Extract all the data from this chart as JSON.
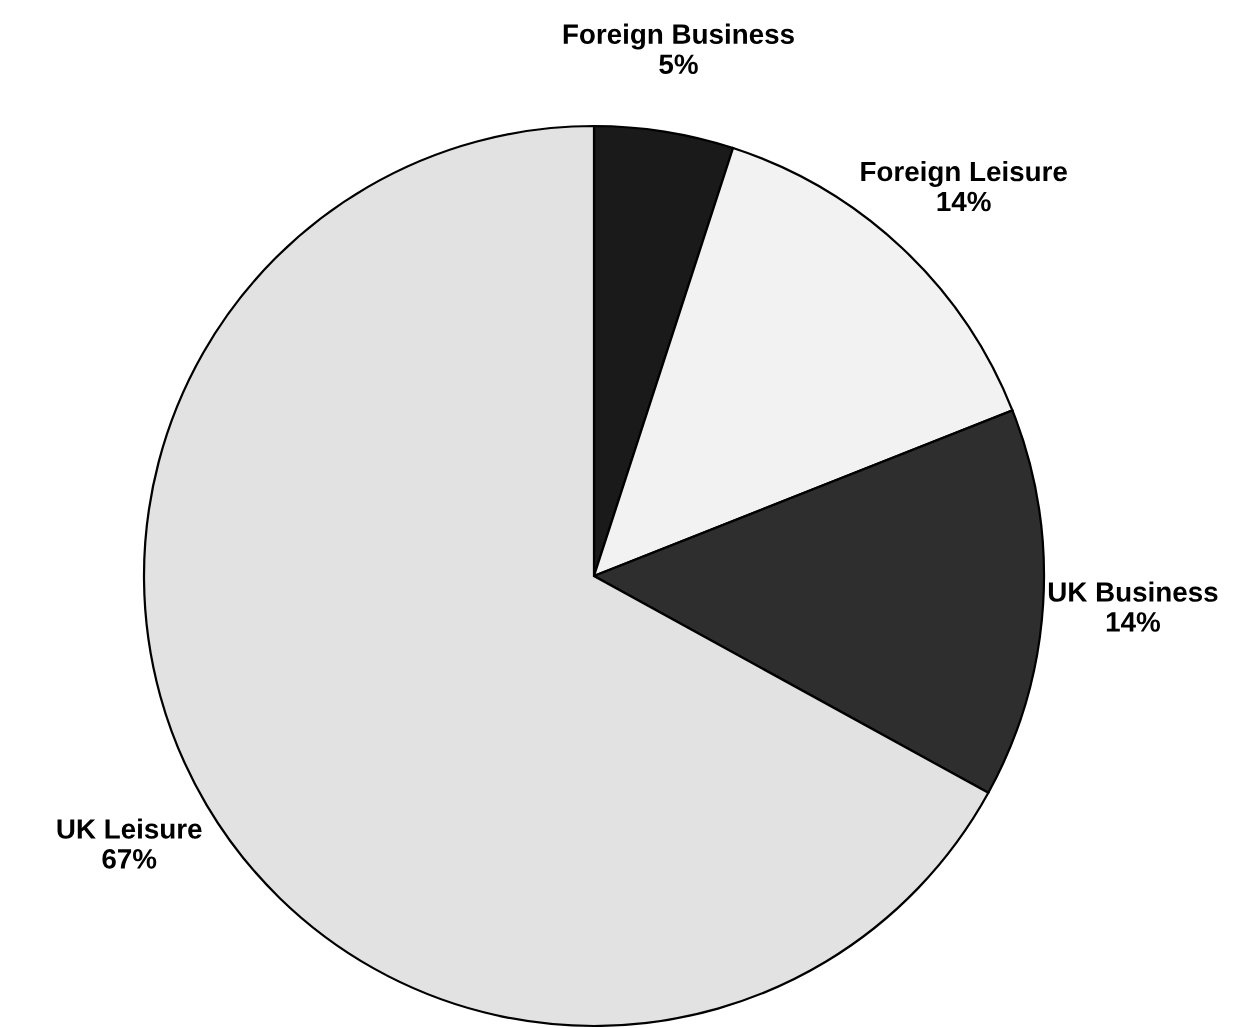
{
  "chart_data": {
    "type": "pie",
    "categories": [
      "Foreign Business",
      "Foreign Leisure",
      "UK Business",
      "UK Leisure"
    ],
    "values": [
      5,
      14,
      14,
      67
    ],
    "value_labels": [
      "5%",
      "14%",
      "14%",
      "67%"
    ],
    "colors": [
      "#1a1a1a",
      "#f2f2f2",
      "#2e2e2e",
      "#e2e2e2"
    ]
  }
}
